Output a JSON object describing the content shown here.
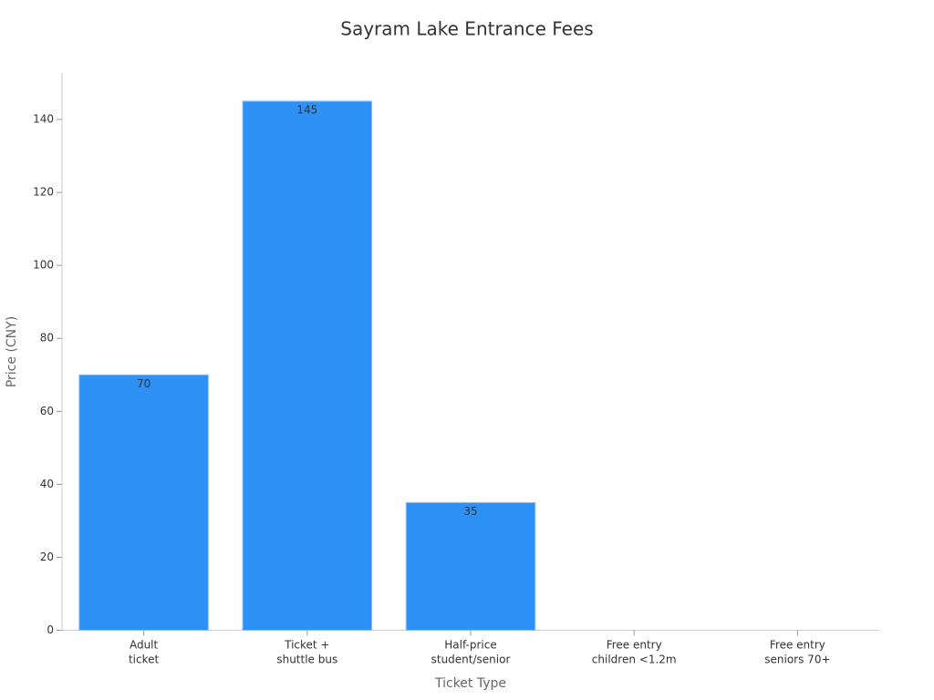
{
  "chart_data": {
    "type": "bar",
    "title": "Sayram Lake Entrance Fees",
    "x_label": "Ticket Type",
    "y_label": "Price (CNY)",
    "categories": [
      "Adult\nticket",
      "Ticket +\nshuttle bus",
      "Half-price\nstudent/senior",
      "Free entry\nchildren <1.2m",
      "Free entry\nseniors 70+"
    ],
    "values": [
      70,
      145,
      35,
      0,
      0
    ],
    "color": "#2e91f5",
    "ylim": [
      0,
      152.75
    ],
    "yticks": [
      0,
      20,
      40,
      60,
      80,
      100,
      120,
      140
    ],
    "grid": false
  }
}
